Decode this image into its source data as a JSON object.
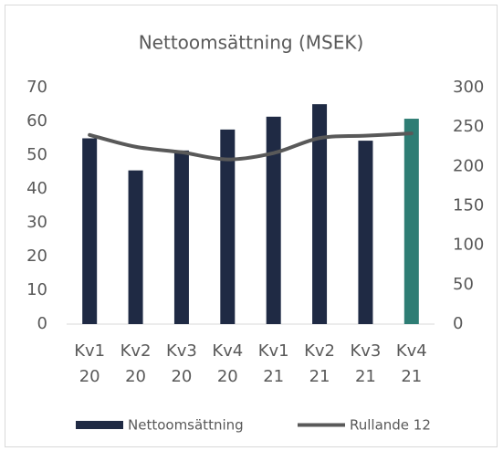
{
  "chart_data": {
    "type": "bar_line",
    "title": "Nettoomsättning (MSEK)",
    "categories": [
      "Kv1 20",
      "Kv2 20",
      "Kv3 20",
      "Kv4 20",
      "Kv1 21",
      "Kv2 21",
      "Kv3 21",
      "Kv4 21"
    ],
    "series": [
      {
        "name": "Nettoomsättning",
        "type": "bar",
        "color": "#1f2a44",
        "colors": [
          "#1f2a44",
          "#1f2a44",
          "#1f2a44",
          "#1f2a44",
          "#1f2a44",
          "#1f2a44",
          "#1f2a44",
          "#2e7d74"
        ],
        "values": [
          55,
          45.5,
          51.4,
          57.6,
          61.4,
          65.1,
          54.3,
          60.8
        ]
      },
      {
        "name": "Rullande 12",
        "type": "line",
        "axis": "y2",
        "color": "#595959",
        "values": [
          240,
          225,
          218,
          209,
          217,
          236,
          239,
          242
        ]
      }
    ],
    "ylim": [
      0,
      70
    ],
    "yticks": [
      0,
      10,
      20,
      30,
      40,
      50,
      60,
      70
    ],
    "y2lim": [
      0,
      300
    ],
    "y2ticks": [
      0,
      50,
      100,
      150,
      200,
      250,
      300
    ],
    "grid": false,
    "legend": "bottom"
  }
}
